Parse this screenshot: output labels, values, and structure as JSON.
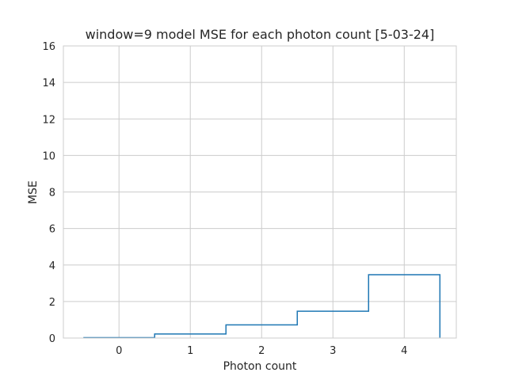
{
  "chart_data": {
    "type": "line",
    "style": "step-histogram",
    "title": "window=9 model MSE for each photon count [5-03-24]",
    "xlabel": "Photon count",
    "ylabel": "MSE",
    "xlim": [
      -0.78,
      4.73
    ],
    "ylim": [
      0,
      16
    ],
    "x_ticks": [
      0,
      1,
      2,
      3,
      4
    ],
    "y_ticks": [
      0,
      2,
      4,
      6,
      8,
      10,
      12,
      14,
      16
    ],
    "grid": true,
    "series": [
      {
        "x": [
          0,
          1,
          2,
          3,
          4
        ],
        "values": [
          0.02,
          0.22,
          0.72,
          1.47,
          3.47
        ],
        "color": "#1f77b4"
      }
    ]
  }
}
